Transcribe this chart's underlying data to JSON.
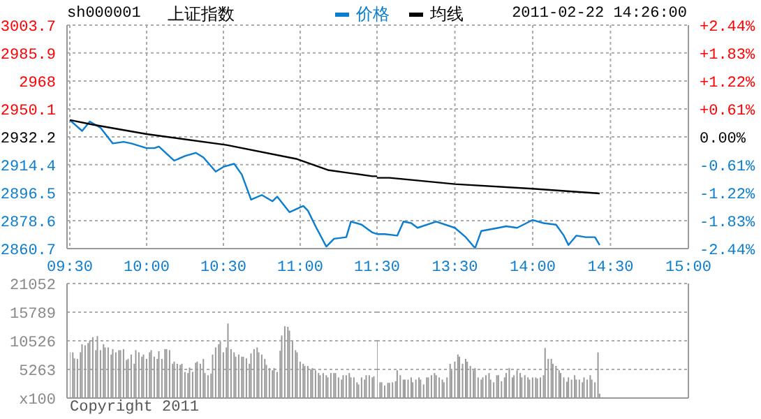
{
  "chart_data": [
    {
      "type": "line",
      "title": "上证指数",
      "subtitle": "sh000001",
      "annotations": [
        "2011-02-22 14:26:00"
      ],
      "legend": "top",
      "grid": true,
      "tick_labels": "xy",
      "xlim": [
        9.5,
        11.5
      ],
      "xticks": [
        {
          "value": 9.5,
          "label": "09:30"
        },
        {
          "value": 10,
          "label": "10:00"
        },
        {
          "value": 10.5,
          "label": "10:30"
        },
        {
          "value": 11,
          "label": "11:00"
        },
        {
          "value": 11.5,
          "label": "11:30"
        }
      ],
      "ylim": [
        2860.7,
        3003.7
      ],
      "yticks": [
        2860.7,
        2878.6,
        2896.5,
        2914.4,
        2932.2,
        2950.1,
        2968.0,
        2985.9,
        3003.7
      ],
      "series": [
        {
          "name": "价格",
          "color": "#0a7dd0",
          "x": [
            9.5,
            9.58,
            9.63,
            9.7,
            9.78,
            9.85,
            9.9,
            10,
            10.05,
            10.08,
            10.18,
            10.25,
            10.32,
            10.37,
            10.45,
            10.5,
            10.57,
            10.62,
            10.68,
            10.75,
            10.82,
            10.85,
            10.93,
            11.02,
            11.05,
            11.1,
            11.17,
            11.22,
            11.3,
            11.33,
            11.4,
            11.47,
            11.5
          ],
          "values": [
            2943,
            2936,
            2942,
            2938,
            2928,
            2929,
            2928,
            2925,
            2925,
            2926,
            2917,
            2920,
            2922,
            2919,
            2910,
            2913,
            2915,
            2908,
            2892,
            2895,
            2891,
            2894,
            2884,
            2888,
            2885,
            2875,
            2862,
            2867,
            2868,
            2878,
            2876,
            2871,
            2870
          ]
        },
        {
          "name": "均线",
          "color": "#000000",
          "x": [
            9.5,
            9.65,
            10,
            10.52,
            10.98,
            11.18,
            11.47,
            11.5
          ],
          "values": [
            2943,
            2940,
            2934,
            2927,
            2918,
            2911,
            2907,
            2907
          ]
        }
      ]
    },
    {
      "type": "line",
      "grid": true,
      "tick_labels": "x",
      "xlim": [
        13,
        15
      ],
      "xticks": [
        {
          "value": 13.5,
          "label": "13:30"
        },
        {
          "value": 14,
          "label": "14:00"
        },
        {
          "value": 14.5,
          "label": "14:30"
        },
        {
          "value": 15,
          "label": "15:00"
        }
      ],
      "ylim": [
        2860.7,
        3003.7
      ],
      "yticks": [
        2860.7,
        2878.6,
        2896.5,
        2914.4,
        2932.2,
        2950.1,
        2968.0,
        2985.9,
        3003.7
      ],
      "y2lim": [
        -2.44,
        2.44
      ],
      "y2ticks": [
        {
          "value": -2.44,
          "label": "-2.44%"
        },
        {
          "value": -1.83,
          "label": "-1.83%"
        },
        {
          "value": -1.22,
          "label": "-1.22%"
        },
        {
          "value": -0.61,
          "label": "-0.61%"
        },
        {
          "value": 0,
          "label": "0.00%"
        },
        {
          "value": 0.61,
          "label": "+0.61%"
        },
        {
          "value": 1.22,
          "label": "+1.22%"
        },
        {
          "value": 1.83,
          "label": "+1.83%"
        },
        {
          "value": 2.44,
          "label": "+2.44%"
        }
      ],
      "series": [
        {
          "color": "#0a7dd0",
          "x": [
            13,
            13.05,
            13.13,
            13.17,
            13.22,
            13.26,
            13.38,
            13.5,
            13.57,
            13.63,
            13.67,
            13.78,
            13.83,
            13.9,
            14,
            14.07,
            14.15,
            14.2,
            14.23,
            14.28,
            14.34,
            14.4,
            14.43
          ],
          "values": [
            2870,
            2870,
            2869,
            2878,
            2877,
            2874,
            2878,
            2874,
            2868,
            2861,
            2872,
            2874,
            2875,
            2874,
            2879,
            2877,
            2876,
            2869,
            2863,
            2869,
            2868,
            2868,
            2863
          ]
        },
        {
          "color": "#000000",
          "x": [
            13,
            13.08,
            13.5,
            14,
            14.43
          ],
          "values": [
            2906,
            2906,
            2902,
            2899,
            2896
          ]
        }
      ]
    },
    {
      "type": "bar",
      "annotations": [
        "Copyright 2011"
      ],
      "grid": true,
      "tick_labels": "y",
      "color": "#999999",
      "xlim": [
        9.5,
        11.5
      ],
      "xticks": [
        {
          "value": 9.5,
          "label": null
        },
        {
          "value": 10,
          "label": null
        },
        {
          "value": 10.5,
          "label": null
        },
        {
          "value": 11,
          "label": null
        },
        {
          "value": 11.5,
          "label": null
        }
      ],
      "ylim": [
        0,
        21052
      ],
      "yticks": [
        {
          "value": 0,
          "label": "x100"
        },
        5263,
        10526,
        15789,
        21052
      ],
      "x": [
        9.5,
        9.52,
        9.53,
        9.55,
        9.57,
        9.58,
        9.6,
        9.62,
        9.63,
        9.65,
        9.67,
        9.68,
        9.7,
        9.72,
        9.73,
        9.75,
        9.77,
        9.78,
        9.8,
        9.82,
        9.83,
        9.85,
        9.87,
        9.88,
        9.9,
        9.92,
        9.93,
        9.95,
        9.97,
        9.98,
        10,
        10.02,
        10.03,
        10.05,
        10.07,
        10.08,
        10.1,
        10.12,
        10.13,
        10.15,
        10.17,
        10.18,
        10.2,
        10.22,
        10.23,
        10.25,
        10.27,
        10.28,
        10.3,
        10.32,
        10.33,
        10.35,
        10.37,
        10.38,
        10.4,
        10.42,
        10.43,
        10.45,
        10.47,
        10.48,
        10.5,
        10.52,
        10.53,
        10.55,
        10.57,
        10.58,
        10.6,
        10.62,
        10.63,
        10.65,
        10.67,
        10.68,
        10.7,
        10.72,
        10.73,
        10.75,
        10.77,
        10.78,
        10.8,
        10.82,
        10.83,
        10.85,
        10.87,
        10.88,
        10.9,
        10.92,
        10.93,
        10.95,
        10.97,
        10.98,
        11,
        11.02,
        11.03,
        11.05,
        11.07,
        11.08,
        11.1,
        11.12,
        11.13,
        11.15,
        11.17,
        11.18,
        11.2,
        11.22,
        11.23,
        11.25,
        11.27,
        11.28,
        11.3,
        11.32,
        11.33,
        11.35,
        11.37,
        11.38,
        11.4,
        11.42,
        11.43,
        11.45,
        11.47,
        11.48
      ],
      "values": [
        8400,
        8400,
        7300,
        7200,
        8400,
        9900,
        9700,
        10100,
        10500,
        11200,
        8800,
        11400,
        8800,
        9900,
        9300,
        9300,
        8000,
        9000,
        8400,
        8800,
        8800,
        9000,
        7000,
        7200,
        8000,
        6300,
        8800,
        8400,
        7600,
        8000,
        7200,
        8400,
        8800,
        7600,
        7200,
        8600,
        7200,
        9000,
        9000,
        8800,
        6300,
        6700,
        6300,
        6100,
        6300,
        4800,
        4600,
        5600,
        4800,
        6500,
        6700,
        6300,
        7200,
        4600,
        4200,
        4500,
        8000,
        9300,
        9900,
        10400,
        8400,
        9300,
        13700,
        9000,
        8400,
        7600,
        8000,
        7600,
        7600,
        7300,
        6300,
        8200,
        9000,
        9300,
        8400,
        8000,
        7200,
        6100,
        5500,
        5100,
        5500,
        4800,
        8700,
        11500,
        13200,
        13100,
        12400,
        10400,
        8800,
        8400,
        6700,
        6300,
        5900,
        5900,
        5300,
        5500,
        5100,
        4600,
        4200,
        4600,
        4200,
        3800,
        4600,
        4600,
        4600,
        3800,
        3400,
        4200,
        4200,
        4600,
        3800,
        3800,
        2900,
        2500,
        3800,
        3400,
        4200,
        4200,
        3800,
        4000
      ]
    },
    {
      "type": "bar",
      "grid": true,
      "tick_labels": false,
      "color": "#999999",
      "xlim": [
        13,
        15
      ],
      "xticks": [
        {
          "value": 13.5,
          "label": null
        },
        {
          "value": 14,
          "label": null
        },
        {
          "value": 14.5,
          "label": null
        },
        {
          "value": 15,
          "label": null
        }
      ],
      "ylim": [
        0,
        21052
      ],
      "yticks": [
        0,
        5263,
        10526,
        15789,
        21052
      ],
      "x": [
        13,
        13.02,
        13.03,
        13.05,
        13.07,
        13.08,
        13.1,
        13.12,
        13.13,
        13.15,
        13.17,
        13.18,
        13.2,
        13.22,
        13.23,
        13.25,
        13.27,
        13.28,
        13.3,
        13.32,
        13.33,
        13.35,
        13.37,
        13.38,
        13.4,
        13.42,
        13.43,
        13.45,
        13.47,
        13.48,
        13.5,
        13.52,
        13.53,
        13.55,
        13.57,
        13.58,
        13.6,
        13.62,
        13.63,
        13.65,
        13.67,
        13.68,
        13.7,
        13.72,
        13.73,
        13.75,
        13.77,
        13.78,
        13.8,
        13.82,
        13.83,
        13.85,
        13.87,
        13.88,
        13.9,
        13.92,
        13.93,
        13.95,
        13.97,
        13.98,
        14,
        14.02,
        14.03,
        14.05,
        14.07,
        14.08,
        14.1,
        14.12,
        14.13,
        14.15,
        14.17,
        14.18,
        14.2,
        14.22,
        14.23,
        14.25,
        14.27,
        14.28,
        14.3,
        14.32,
        14.33,
        14.35,
        14.37,
        14.38,
        14.4,
        14.42,
        14.43
      ],
      "values": [
        10700,
        2900,
        2900,
        2300,
        2800,
        2800,
        2900,
        3100,
        5100,
        4200,
        3400,
        3400,
        3400,
        3800,
        2900,
        3400,
        3800,
        3400,
        2500,
        3800,
        3800,
        4200,
        4600,
        4200,
        3800,
        3400,
        2900,
        3800,
        6300,
        5100,
        6700,
        8000,
        7600,
        6300,
        7200,
        6700,
        5900,
        5100,
        5500,
        3800,
        3400,
        3800,
        4200,
        4600,
        3400,
        2900,
        4200,
        4200,
        3100,
        3800,
        4600,
        5500,
        3800,
        4200,
        5100,
        4600,
        3800,
        4200,
        3800,
        3400,
        3800,
        3800,
        3600,
        3800,
        4200,
        9200,
        7200,
        7200,
        6300,
        5900,
        5100,
        4600,
        3800,
        3000,
        3800,
        3400,
        4200,
        3400,
        3400,
        2900,
        3800,
        3400,
        4200,
        3400,
        2900,
        8400,
        800
      ]
    }
  ]
}
